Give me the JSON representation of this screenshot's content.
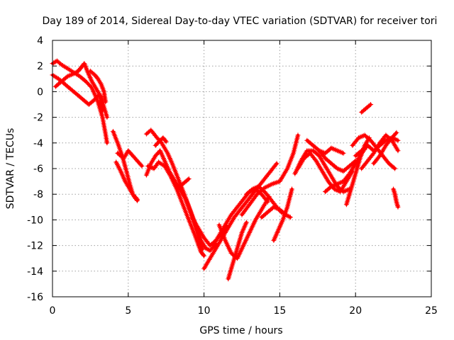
{
  "chart_data": {
    "type": "scatter",
    "title": "Day 189 of 2014, Sidereal Day-to-day VTEC variation (SDTVAR) for receiver tori",
    "xlabel": "GPS time / hours",
    "ylabel": "SDTVAR / TECUs",
    "xlim": [
      0,
      25
    ],
    "ylim": [
      -16,
      4
    ],
    "xticks": [
      0,
      5,
      10,
      15,
      20,
      25
    ],
    "yticks": [
      -16,
      -14,
      -12,
      -10,
      -8,
      -6,
      -4,
      -2,
      0,
      2,
      4
    ],
    "grid": true,
    "marker": "+",
    "color": "#ff0000",
    "series": [
      {
        "name": "track-1",
        "x": [
          0.0,
          0.3,
          0.6,
          1.0,
          1.4,
          1.8,
          2.2,
          2.6,
          3.0,
          3.3,
          3.5,
          3.6
        ],
        "y": [
          2.2,
          2.4,
          2.1,
          1.8,
          1.5,
          1.2,
          0.8,
          0.3,
          -0.8,
          -2.0,
          -3.3,
          -4.0
        ]
      },
      {
        "name": "track-2",
        "x": [
          0.0,
          0.4,
          0.8,
          1.2,
          1.6,
          2.0,
          2.4,
          2.8,
          3.1,
          3.3
        ],
        "y": [
          1.3,
          1.0,
          0.6,
          0.2,
          -0.2,
          -0.6,
          -1.0,
          -0.6,
          -0.2,
          -1.5
        ]
      },
      {
        "name": "track-3",
        "x": [
          0.2,
          0.6,
          1.0,
          1.4,
          1.7,
          1.9,
          2.1,
          2.3,
          2.6,
          2.9,
          3.2,
          3.4,
          3.6
        ],
        "y": [
          0.4,
          0.8,
          1.2,
          1.4,
          1.6,
          1.9,
          2.2,
          1.6,
          0.8,
          0.2,
          -0.4,
          -1.2,
          -2.0
        ]
      },
      {
        "name": "track-4",
        "x": [
          2.5,
          2.8,
          3.0,
          3.2,
          3.4,
          3.5
        ],
        "y": [
          1.6,
          1.3,
          1.0,
          0.6,
          0.0,
          -0.8
        ]
      },
      {
        "name": "track-5",
        "x": [
          4.0,
          4.3,
          4.6,
          4.9,
          5.1,
          5.3,
          5.6
        ],
        "y": [
          -3.1,
          -4.0,
          -5.0,
          -6.3,
          -7.2,
          -8.0,
          -8.4
        ]
      },
      {
        "name": "track-6",
        "x": [
          4.2,
          4.5,
          4.8,
          5.1,
          5.4,
          5.6
        ],
        "y": [
          -5.5,
          -6.2,
          -7.0,
          -7.6,
          -8.2,
          -8.5
        ]
      },
      {
        "name": "track-7",
        "x": [
          4.3,
          4.7,
          5.0,
          5.3,
          5.6,
          5.9
        ],
        "y": [
          -4.8,
          -5.2,
          -4.6,
          -5.0,
          -5.4,
          -5.8
        ]
      },
      {
        "name": "track-8",
        "x": [
          6.2,
          6.5,
          6.9,
          7.2,
          7.6,
          7.9,
          8.3,
          8.7,
          9.0,
          9.3,
          9.6,
          9.9
        ],
        "y": [
          -3.3,
          -3.0,
          -3.6,
          -4.0,
          -4.8,
          -5.6,
          -6.8,
          -8.0,
          -9.0,
          -10.0,
          -11.2,
          -12.3
        ]
      },
      {
        "name": "track-9",
        "x": [
          6.3,
          6.7,
          7.0,
          7.4,
          7.8,
          8.2,
          8.6,
          9.0,
          9.4,
          9.8,
          10.0
        ],
        "y": [
          -5.8,
          -6.0,
          -5.5,
          -5.8,
          -6.6,
          -7.6,
          -8.8,
          -10.0,
          -11.2,
          -12.5,
          -12.8
        ]
      },
      {
        "name": "track-10",
        "x": [
          6.2,
          6.5,
          6.8,
          7.1,
          7.4,
          7.7,
          8.0,
          8.3,
          8.6,
          9.0
        ],
        "y": [
          -6.5,
          -5.6,
          -5.0,
          -4.6,
          -5.4,
          -6.2,
          -6.8,
          -7.4,
          -7.2,
          -6.8
        ]
      },
      {
        "name": "track-11",
        "x": [
          6.8,
          7.1,
          7.3,
          7.5
        ],
        "y": [
          -4.2,
          -3.8,
          -3.6,
          -3.9
        ]
      },
      {
        "name": "track-12",
        "x": [
          8.0,
          8.4,
          8.8,
          9.2,
          9.5,
          9.8,
          10.1,
          10.4,
          10.8
        ],
        "y": [
          -6.8,
          -7.6,
          -8.4,
          -9.6,
          -10.6,
          -11.6,
          -12.2,
          -12.4,
          -11.9
        ]
      },
      {
        "name": "track-13",
        "x": [
          9.2,
          9.6,
          10.0,
          10.4,
          10.8,
          11.2,
          11.5
        ],
        "y": [
          -9.8,
          -10.6,
          -11.4,
          -12.0,
          -11.6,
          -11.0,
          -10.5
        ]
      },
      {
        "name": "track-14",
        "x": [
          10.0,
          10.4,
          10.8,
          11.2,
          11.6,
          12.0,
          12.4,
          12.8,
          13.2,
          13.6,
          14.0,
          14.4,
          14.8
        ],
        "y": [
          -13.8,
          -13.0,
          -12.2,
          -11.4,
          -10.6,
          -9.8,
          -9.2,
          -8.6,
          -8.0,
          -7.4,
          -6.8,
          -6.2,
          -5.6
        ]
      },
      {
        "name": "track-15",
        "x": [
          10.6,
          11.0,
          11.4,
          11.8,
          12.2,
          12.6,
          13.0,
          13.4,
          13.8,
          14.2
        ],
        "y": [
          -12.0,
          -11.2,
          -10.4,
          -9.6,
          -9.0,
          -8.4,
          -7.8,
          -7.6,
          -8.0,
          -8.6
        ]
      },
      {
        "name": "track-16",
        "x": [
          11.0,
          11.4,
          11.8,
          12.2,
          12.6,
          13.0,
          13.4,
          13.8,
          14.1,
          14.3
        ],
        "y": [
          -10.4,
          -11.6,
          -12.6,
          -13.0,
          -12.0,
          -11.0,
          -10.0,
          -9.2,
          -8.6,
          -8.2
        ]
      },
      {
        "name": "track-17",
        "x": [
          11.6,
          11.9,
          12.2,
          12.5,
          12.8
        ],
        "y": [
          -14.6,
          -13.4,
          -12.2,
          -11.0,
          -10.2
        ]
      },
      {
        "name": "track-18",
        "x": [
          12.5,
          13.0,
          13.5,
          14.0,
          14.5,
          15.0,
          15.5,
          15.9,
          16.2
        ],
        "y": [
          -9.6,
          -8.8,
          -8.0,
          -7.5,
          -7.2,
          -7.0,
          -6.0,
          -4.8,
          -3.4
        ]
      },
      {
        "name": "track-19",
        "x": [
          12.8,
          13.2,
          13.6,
          14.0,
          14.4,
          14.8,
          15.1,
          15.4
        ],
        "y": [
          -8.0,
          -7.6,
          -7.4,
          -7.8,
          -8.4,
          -9.0,
          -9.4,
          -9.6
        ]
      },
      {
        "name": "track-20",
        "x": [
          13.8,
          14.2,
          14.6,
          15.0,
          15.4,
          15.7
        ],
        "y": [
          -9.8,
          -9.4,
          -9.0,
          -9.2,
          -9.6,
          -9.8
        ]
      },
      {
        "name": "track-21",
        "x": [
          14.6,
          14.9,
          15.2,
          15.5,
          15.8
        ],
        "y": [
          -11.6,
          -10.8,
          -10.0,
          -9.0,
          -7.6
        ]
      },
      {
        "name": "track-22",
        "x": [
          16.0,
          16.4,
          16.8,
          17.2,
          17.6,
          18.0,
          18.4,
          18.8,
          19.2,
          19.6
        ],
        "y": [
          -6.4,
          -5.4,
          -4.6,
          -4.6,
          -5.0,
          -5.8,
          -6.6,
          -7.4,
          -7.8,
          -7.6
        ]
      },
      {
        "name": "track-23",
        "x": [
          16.2,
          16.6,
          17.0,
          17.4,
          17.8,
          18.2,
          18.6,
          19.0,
          19.4,
          19.8
        ],
        "y": [
          -6.0,
          -5.2,
          -4.8,
          -5.4,
          -6.2,
          -7.0,
          -7.6,
          -7.8,
          -7.0,
          -6.2
        ]
      },
      {
        "name": "track-24",
        "x": [
          16.8,
          17.2,
          17.6,
          18.0,
          18.4,
          18.8,
          19.2,
          19.6,
          20.0
        ],
        "y": [
          -3.8,
          -4.2,
          -4.6,
          -5.2,
          -5.6,
          -6.0,
          -6.2,
          -5.8,
          -5.4
        ]
      },
      {
        "name": "track-25",
        "x": [
          17.6,
          18.0,
          18.4,
          18.8,
          19.2
        ],
        "y": [
          -4.6,
          -4.8,
          -4.4,
          -4.6,
          -4.8
        ]
      },
      {
        "name": "track-26",
        "x": [
          18.0,
          18.4,
          18.8,
          19.2,
          19.6,
          20.0,
          20.4,
          20.8
        ],
        "y": [
          -7.8,
          -7.4,
          -7.2,
          -7.0,
          -6.4,
          -5.6,
          -4.8,
          -4.2
        ]
      },
      {
        "name": "track-27",
        "x": [
          19.4,
          19.7,
          20.0,
          20.3,
          20.6,
          20.9
        ],
        "y": [
          -8.8,
          -7.6,
          -6.4,
          -5.2,
          -4.2,
          -3.6
        ]
      },
      {
        "name": "track-28",
        "x": [
          19.8,
          20.2,
          20.6,
          21.0,
          21.4,
          21.8,
          22.2,
          22.6
        ],
        "y": [
          -4.2,
          -3.6,
          -3.4,
          -3.8,
          -4.4,
          -5.0,
          -5.6,
          -6.0
        ]
      },
      {
        "name": "track-29",
        "x": [
          20.0,
          20.4,
          20.8,
          21.2,
          21.6,
          22.0,
          22.4,
          22.8
        ],
        "y": [
          -5.0,
          -4.6,
          -4.2,
          -4.6,
          -4.2,
          -3.8,
          -3.6,
          -3.8
        ]
      },
      {
        "name": "track-30",
        "x": [
          20.4,
          20.8,
          21.2,
          21.6,
          22.0,
          22.4,
          22.8
        ],
        "y": [
          -6.0,
          -5.4,
          -4.8,
          -4.0,
          -3.4,
          -3.8,
          -4.6
        ]
      },
      {
        "name": "track-31",
        "x": [
          21.2,
          21.6,
          22.0,
          22.4,
          22.7
        ],
        "y": [
          -5.6,
          -5.0,
          -4.2,
          -3.6,
          -3.2
        ]
      },
      {
        "name": "track-32",
        "x": [
          20.4,
          20.6,
          20.8,
          21.0
        ],
        "y": [
          -1.6,
          -1.4,
          -1.2,
          -1.0
        ]
      },
      {
        "name": "track-33",
        "x": [
          22.5,
          22.6,
          22.7,
          22.8
        ],
        "y": [
          -7.6,
          -8.0,
          -8.6,
          -9.0
        ]
      }
    ]
  }
}
